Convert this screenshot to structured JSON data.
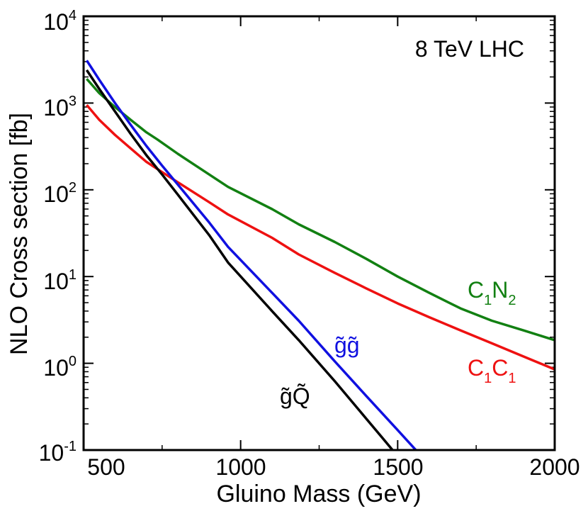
{
  "chart_data": {
    "type": "line",
    "title": "8 TeV LHC",
    "xlabel": "Gluino Mass  (GeV)",
    "ylabel": "NLO Cross section  [fb]",
    "xlim": [
      500,
      2000
    ],
    "ylim_log10": [
      -1,
      4
    ],
    "yscale": "log",
    "x_ticks": [
      "500",
      "1000",
      "1500",
      "2000"
    ],
    "y_ticks": [
      {
        "base": "10",
        "exp": "-1"
      },
      {
        "base": "10",
        "exp": "0"
      },
      {
        "base": "10",
        "exp": "1"
      },
      {
        "base": "10",
        "exp": "2"
      },
      {
        "base": "10",
        "exp": "3"
      },
      {
        "base": "10",
        "exp": "4"
      }
    ],
    "series": [
      {
        "name": "C1N2",
        "label_main": "C",
        "label_sub1": "1",
        "label_main2": "N",
        "label_sub2": "2",
        "color": "#128012",
        "points": [
          [
            510,
            1900
          ],
          [
            550,
            1300
          ],
          [
            600,
            900
          ],
          [
            650,
            640
          ],
          [
            700,
            460
          ],
          [
            735,
            380
          ],
          [
            800,
            260
          ],
          [
            900,
            150
          ],
          [
            960,
            108
          ],
          [
            1100,
            60
          ],
          [
            1185,
            40
          ],
          [
            1300,
            25
          ],
          [
            1400,
            16
          ],
          [
            1500,
            10
          ],
          [
            1600,
            6.5
          ],
          [
            1700,
            4.3
          ],
          [
            1800,
            3.1
          ],
          [
            1900,
            2.4
          ],
          [
            2000,
            1.85
          ]
        ]
      },
      {
        "name": "C1C1",
        "label_main": "C",
        "label_sub1": "1",
        "label_main2": "C",
        "label_sub2": "1",
        "color": "#ee1111",
        "points": [
          [
            510,
            950
          ],
          [
            550,
            640
          ],
          [
            600,
            430
          ],
          [
            650,
            300
          ],
          [
            700,
            210
          ],
          [
            750,
            160
          ],
          [
            800,
            122
          ],
          [
            900,
            72
          ],
          [
            960,
            52
          ],
          [
            1100,
            28
          ],
          [
            1185,
            18
          ],
          [
            1300,
            11
          ],
          [
            1400,
            7.3
          ],
          [
            1500,
            4.9
          ],
          [
            1600,
            3.4
          ],
          [
            1700,
            2.4
          ],
          [
            1800,
            1.7
          ],
          [
            1900,
            1.2
          ],
          [
            2000,
            0.85
          ]
        ]
      },
      {
        "name": "gluino-gluino",
        "label": "g̃g̃",
        "color": "#1010e0",
        "points": [
          [
            510,
            3100
          ],
          [
            550,
            1850
          ],
          [
            600,
            1000
          ],
          [
            650,
            560
          ],
          [
            700,
            320
          ],
          [
            750,
            190
          ],
          [
            800,
            115
          ],
          [
            900,
            42
          ],
          [
            960,
            22
          ],
          [
            1100,
            6.5
          ],
          [
            1185,
            3.1
          ],
          [
            1300,
            1.05
          ],
          [
            1400,
            0.42
          ],
          [
            1500,
            0.17
          ],
          [
            1600,
            0.068
          ]
        ]
      },
      {
        "name": "gluino-squark",
        "label": "g̃Q̃",
        "color": "#000000",
        "points": [
          [
            510,
            2400
          ],
          [
            550,
            1450
          ],
          [
            600,
            800
          ],
          [
            650,
            440
          ],
          [
            700,
            250
          ],
          [
            750,
            150
          ],
          [
            800,
            88
          ],
          [
            900,
            30
          ],
          [
            960,
            14.5
          ],
          [
            1100,
            4.0
          ],
          [
            1185,
            1.85
          ],
          [
            1300,
            0.62
          ],
          [
            1400,
            0.23
          ],
          [
            1450,
            0.14
          ],
          [
            1500,
            0.085
          ]
        ]
      }
    ]
  }
}
